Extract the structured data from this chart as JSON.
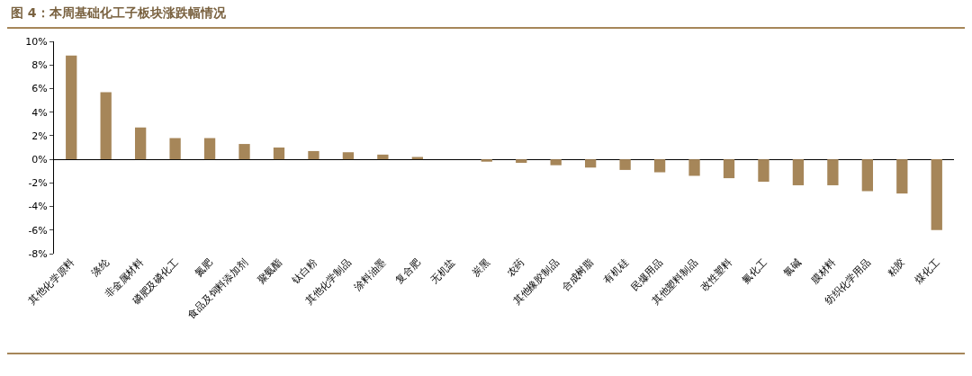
{
  "chart_data": {
    "type": "bar",
    "title": "图 4：本周基础化工子板块涨跌幅情况",
    "categories": [
      "其他化学原料",
      "涤纶",
      "非金属材料",
      "磷肥及磷化工",
      "氮肥",
      "食品及饲料添加剂",
      "聚氨酯",
      "钛白粉",
      "其他化学制品",
      "涂料油墨",
      "复合肥",
      "无机盐",
      "炭黑",
      "农药",
      "其他橡胶制品",
      "合成树脂",
      "有机硅",
      "民爆用品",
      "其他塑料制品",
      "改性塑料",
      "氟化工",
      "氯碱",
      "膜材料",
      "纺织化学用品",
      "粘胶",
      "煤化工"
    ],
    "values": [
      8.8,
      5.7,
      2.7,
      1.8,
      1.8,
      1.3,
      1.0,
      0.7,
      0.6,
      0.4,
      0.2,
      0.0,
      -0.2,
      -0.3,
      -0.5,
      -0.7,
      -0.9,
      -1.1,
      -1.4,
      -1.6,
      -1.9,
      -2.2,
      -2.2,
      -2.7,
      -2.9,
      -6.0
    ],
    "color": "#a68659",
    "ylim": [
      -8,
      10
    ],
    "yticks": [
      {
        "value": -8,
        "label": "-8%"
      },
      {
        "value": -6,
        "label": "-6%"
      },
      {
        "value": -4,
        "label": "-4%"
      },
      {
        "value": -2,
        "label": "-2%"
      },
      {
        "value": 0,
        "label": "0%"
      },
      {
        "value": 2,
        "label": "2%"
      },
      {
        "value": 4,
        "label": "4%"
      },
      {
        "value": 6,
        "label": "6%"
      },
      {
        "value": 8,
        "label": "8%"
      },
      {
        "value": 10,
        "label": "10%"
      }
    ],
    "legend": false
  }
}
